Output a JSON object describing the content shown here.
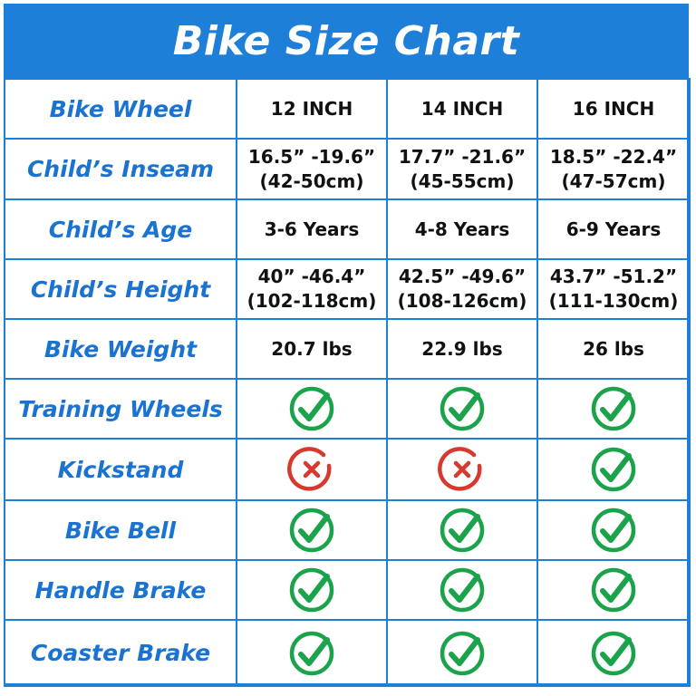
{
  "title": "Bike Size Chart",
  "colors": {
    "accent": "#1e7fd9",
    "label": "#1a73d1",
    "yes": "#1aa34a",
    "no": "#d9382e"
  },
  "rows": [
    {
      "label": "Bike Wheel",
      "cells": [
        "12 INCH",
        "14 INCH",
        "16 INCH"
      ]
    },
    {
      "label": "Child’s Inseam",
      "cells": [
        "16.5” -19.6”\n(42-50cm)",
        "17.7” -21.6”\n(45-55cm)",
        "18.5” -22.4”\n(47-57cm)"
      ]
    },
    {
      "label": "Child’s Age",
      "cells": [
        "3-6 Years",
        "4-8 Years",
        "6-9 Years"
      ]
    },
    {
      "label": "Child’s Height",
      "cells": [
        "40” -46.4”\n(102-118cm)",
        "42.5” -49.6”\n(108-126cm)",
        "43.7” -51.2”\n(111-130cm)"
      ]
    },
    {
      "label": "Bike Weight",
      "cells": [
        "20.7 lbs",
        "22.9 lbs",
        "26 lbs"
      ]
    },
    {
      "label": "Training Wheels",
      "marks": [
        "check-icon",
        "check-icon",
        "check-icon"
      ]
    },
    {
      "label": "Kickstand",
      "marks": [
        "cross-icon",
        "cross-icon",
        "check-icon"
      ]
    },
    {
      "label": "Bike Bell",
      "marks": [
        "check-icon",
        "check-icon",
        "check-icon"
      ]
    },
    {
      "label": "Handle Brake",
      "marks": [
        "check-icon",
        "check-icon",
        "check-icon"
      ]
    },
    {
      "label": "Coaster Brake",
      "marks": [
        "check-icon",
        "check-icon",
        "check-icon"
      ]
    }
  ]
}
